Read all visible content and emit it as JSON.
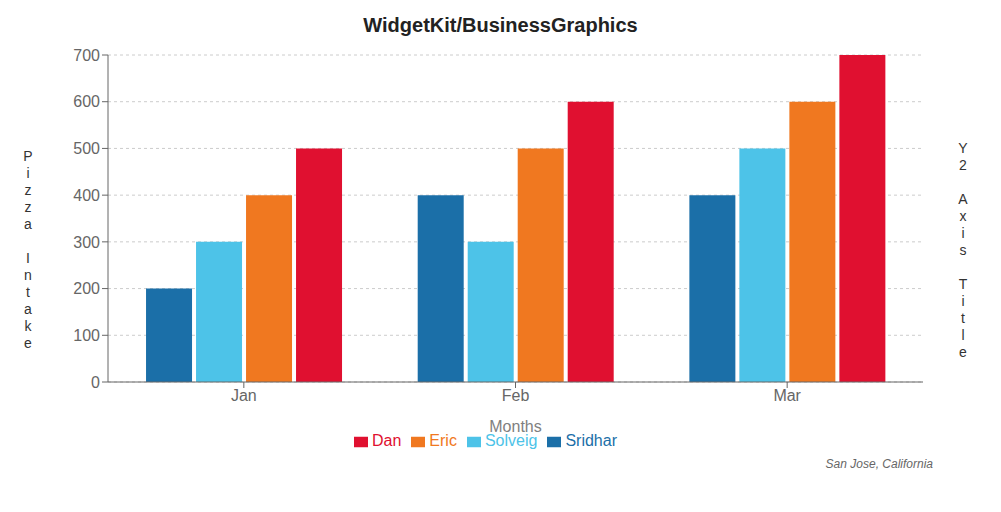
{
  "chart_data": {
    "type": "bar",
    "title": "WidgetKit/BusinessGraphics",
    "categories": [
      "Jan",
      "Feb",
      "Mar"
    ],
    "series": [
      {
        "name": "Sridhar",
        "color": "#1B6FA8",
        "values": [
          200,
          400,
          400
        ]
      },
      {
        "name": "Solveig",
        "color": "#4DC3E8",
        "values": [
          300,
          300,
          500
        ]
      },
      {
        "name": "Eric",
        "color": "#F07820",
        "values": [
          400,
          500,
          600
        ]
      },
      {
        "name": "Dan",
        "color": "#E01030",
        "values": [
          500,
          600,
          700
        ]
      }
    ],
    "xlabel": "Months",
    "ylabel": "Pizza Intake",
    "y2label": "Y2 Axis Title",
    "annotation": "San Jose, California",
    "ylim": [
      0,
      700
    ],
    "yticks": [
      0,
      100,
      200,
      300,
      400,
      500,
      600,
      700
    ],
    "grid": true,
    "legend": "bottom"
  }
}
